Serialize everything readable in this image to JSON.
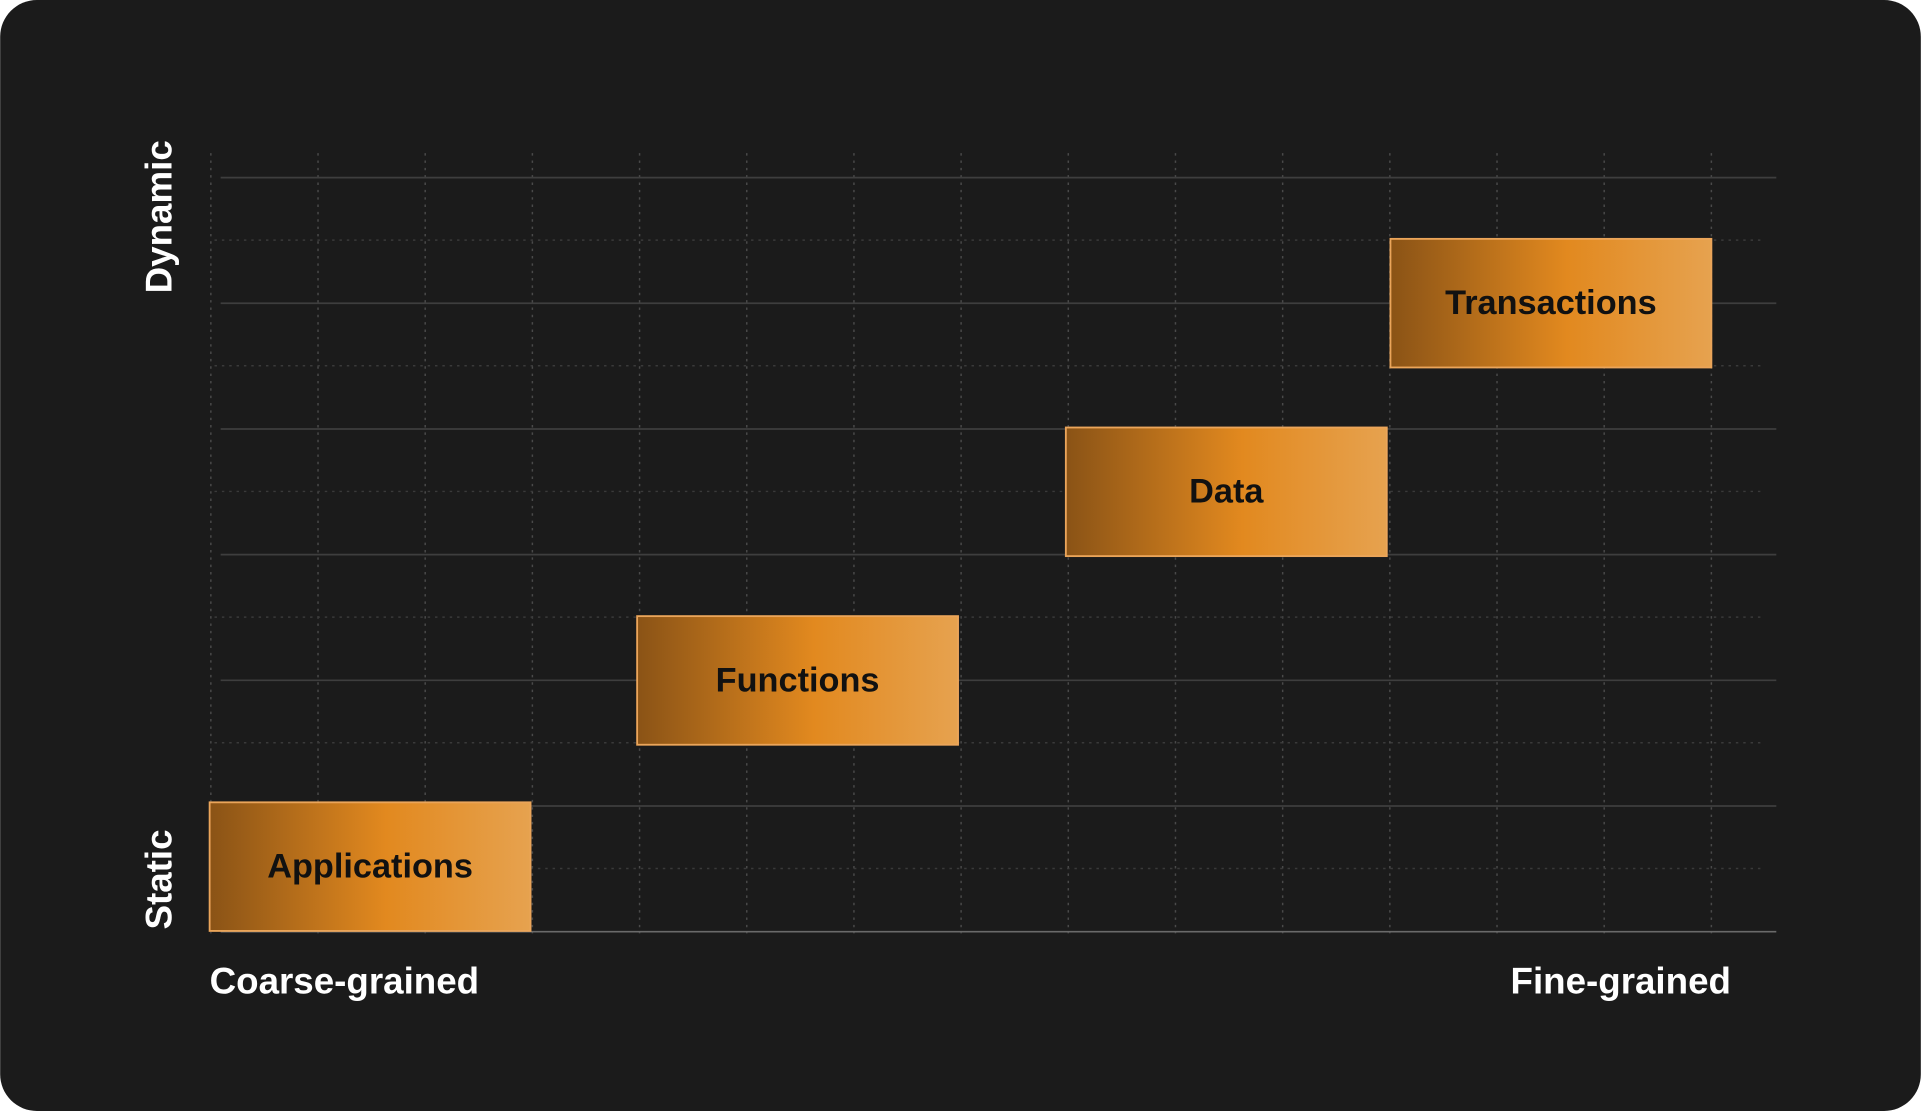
{
  "axes": {
    "y_top": "Dynamic",
    "y_bottom": "Static",
    "x_left": "Coarse-grained",
    "x_right": "Fine-grained"
  },
  "nodes": [
    {
      "label": "Applications"
    },
    {
      "label": "Functions"
    },
    {
      "label": "Data"
    },
    {
      "label": "Transactions"
    }
  ]
}
